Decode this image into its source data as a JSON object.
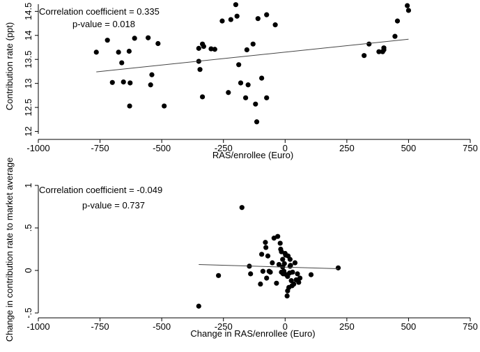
{
  "chart_data": [
    {
      "type": "scatter",
      "xlabel": "RAS/enrollee (Euro)",
      "ylabel": "Contribution rate (ppt)",
      "xlim": [
        -1000,
        750
      ],
      "ylim": [
        11.95,
        14.65
      ],
      "xticks": [
        -1000,
        -750,
        -500,
        -250,
        0,
        250,
        500,
        750
      ],
      "xtick_labels": [
        "-1000",
        "-750",
        "-500",
        "-250",
        "0",
        "250",
        "500",
        "750"
      ],
      "yticks": [
        12,
        12.5,
        13,
        13.5,
        14,
        14.5
      ],
      "ytick_labels": [
        "12",
        "12.5",
        "13",
        "13.5",
        "14",
        "14.5"
      ],
      "annotations": [
        "Correlation coefficient = 0.335",
        "p-value = 0.018"
      ],
      "fit_line": {
        "x": [
          -765,
          500
        ],
        "y": [
          13.24,
          13.92
        ]
      },
      "points": [
        [
          -765,
          13.65
        ],
        [
          -720,
          13.9
        ],
        [
          -700,
          13.02
        ],
        [
          -675,
          13.65
        ],
        [
          -662,
          13.43
        ],
        [
          -655,
          13.03
        ],
        [
          -632,
          13.67
        ],
        [
          -630,
          12.53
        ],
        [
          -628,
          13.01
        ],
        [
          -610,
          13.94
        ],
        [
          -555,
          13.95
        ],
        [
          -545,
          12.97
        ],
        [
          -540,
          13.18
        ],
        [
          -515,
          13.83
        ],
        [
          -490,
          12.53
        ],
        [
          -350,
          13.73
        ],
        [
          -350,
          13.46
        ],
        [
          -345,
          13.29
        ],
        [
          -335,
          13.82
        ],
        [
          -335,
          12.72
        ],
        [
          -330,
          13.77
        ],
        [
          -300,
          13.72
        ],
        [
          -285,
          13.71
        ],
        [
          -255,
          14.3
        ],
        [
          -230,
          12.81
        ],
        [
          -220,
          14.33
        ],
        [
          -200,
          14.64
        ],
        [
          -195,
          14.4
        ],
        [
          -188,
          13.39
        ],
        [
          -180,
          13.01
        ],
        [
          -160,
          12.7
        ],
        [
          -155,
          13.7
        ],
        [
          -150,
          12.97
        ],
        [
          -130,
          13.82
        ],
        [
          -120,
          12.57
        ],
        [
          -115,
          12.2
        ],
        [
          -110,
          14.35
        ],
        [
          -95,
          13.11
        ],
        [
          -75,
          12.7
        ],
        [
          -75,
          14.43
        ],
        [
          -40,
          14.22
        ],
        [
          320,
          13.58
        ],
        [
          340,
          13.82
        ],
        [
          380,
          13.66
        ],
        [
          395,
          13.66
        ],
        [
          400,
          13.7
        ],
        [
          400,
          13.74
        ],
        [
          445,
          13.98
        ],
        [
          455,
          14.3
        ],
        [
          495,
          14.62
        ],
        [
          500,
          14.52
        ]
      ]
    },
    {
      "type": "scatter",
      "xlabel": "Change in RAS/enrollee (Euro)",
      "ylabel": "Change in contribution rate to market average",
      "xlim": [
        -1000,
        750
      ],
      "ylim": [
        -0.5,
        1.0
      ],
      "xticks": [
        -1000,
        -750,
        -500,
        -250,
        0,
        250,
        500,
        750
      ],
      "xtick_labels": [
        "-1000",
        "-750",
        "-500",
        "-250",
        "0",
        "250",
        "500",
        "750"
      ],
      "yticks": [
        -0.5,
        0,
        0.5,
        1
      ],
      "ytick_labels": [
        "-.5",
        "0",
        ".5",
        "1"
      ],
      "annotations": [
        "Correlation coefficient = -0.049",
        "p-value = 0.737"
      ],
      "fit_line": {
        "x": [
          -350,
          215
        ],
        "y": [
          0.07,
          0.02
        ]
      },
      "points": [
        [
          -350,
          -0.42
        ],
        [
          -270,
          -0.06
        ],
        [
          -175,
          0.74
        ],
        [
          -145,
          0.05
        ],
        [
          -140,
          -0.04
        ],
        [
          -100,
          -0.16
        ],
        [
          -95,
          0.19
        ],
        [
          -90,
          -0.01
        ],
        [
          -80,
          0.33
        ],
        [
          -78,
          0.27
        ],
        [
          -75,
          -0.09
        ],
        [
          -70,
          0.17
        ],
        [
          -65,
          -0.01
        ],
        [
          -60,
          -0.02
        ],
        [
          -52,
          0.09
        ],
        [
          -45,
          0.38
        ],
        [
          -35,
          -0.15
        ],
        [
          -30,
          0.4
        ],
        [
          -25,
          0.07
        ],
        [
          -20,
          0.32
        ],
        [
          -18,
          0.25
        ],
        [
          -15,
          0.22
        ],
        [
          -15,
          -0.02
        ],
        [
          -10,
          0.13
        ],
        [
          -10,
          0.04
        ],
        [
          -8,
          -0.04
        ],
        [
          -5,
          -0.01
        ],
        [
          -3,
          0.08
        ],
        [
          0,
          0.2
        ],
        [
          2,
          0.18
        ],
        [
          5,
          -0.05
        ],
        [
          8,
          -0.3
        ],
        [
          10,
          -0.24
        ],
        [
          10,
          -0.07
        ],
        [
          12,
          0.17
        ],
        [
          15,
          -0.2
        ],
        [
          18,
          -0.03
        ],
        [
          20,
          0.05
        ],
        [
          20,
          0.13
        ],
        [
          22,
          0.06
        ],
        [
          25,
          -0.12
        ],
        [
          28,
          -0.18
        ],
        [
          30,
          -0.02
        ],
        [
          35,
          -0.16
        ],
        [
          40,
          0.09
        ],
        [
          45,
          -0.11
        ],
        [
          50,
          -0.04
        ],
        [
          55,
          -0.14
        ],
        [
          60,
          -0.09
        ],
        [
          105,
          -0.05
        ],
        [
          215,
          0.03
        ]
      ]
    }
  ]
}
